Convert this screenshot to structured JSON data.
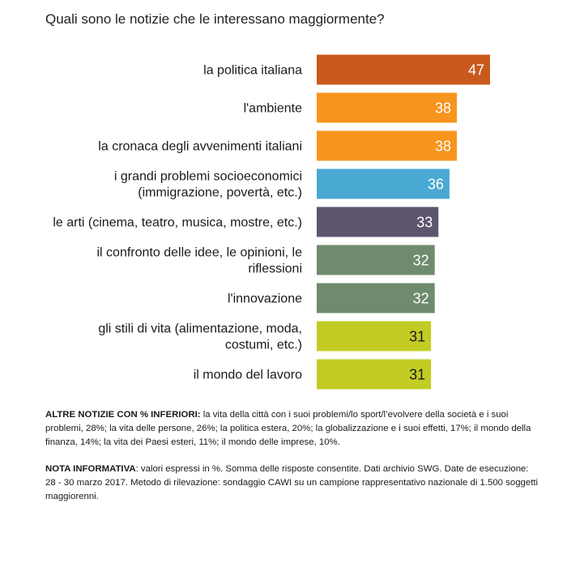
{
  "chart_data": {
    "type": "bar",
    "orientation": "horizontal",
    "title": "Quali sono le notizie che le interessano maggiormente?",
    "xlabel": "",
    "ylabel": "",
    "xlim": [
      0,
      50
    ],
    "grid": false,
    "legend": "none",
    "categories": [
      [
        "la politica italiana"
      ],
      [
        "l'ambiente"
      ],
      [
        "la cronaca degli avvenimenti italiani"
      ],
      [
        "i grandi problemi socioeconomici",
        "(immigrazione, povertà, etc.)"
      ],
      [
        "le arti (cinema, teatro, musica, mostre, etc.)"
      ],
      [
        "il confronto delle idee, le opinioni, le",
        "riflessioni"
      ],
      [
        "l'innovazione"
      ],
      [
        "gli stili di vita (alimentazione, moda,",
        "costumi, etc.)"
      ],
      [
        "il mondo del lavoro"
      ]
    ],
    "values": [
      47,
      38,
      38,
      36,
      33,
      32,
      32,
      31,
      31
    ],
    "colors": [
      "#c85a1e",
      "#f7941d",
      "#f7941d",
      "#4aa9d2",
      "#5d5570",
      "#6f8b6f",
      "#6f8b6f",
      "#c2cc24",
      "#c2cc24"
    ],
    "value_label_colors": [
      "#ffffff",
      "#ffffff",
      "#ffffff",
      "#ffffff",
      "#ffffff",
      "#ffffff",
      "#ffffff",
      "#1a1a1a",
      "#1a1a1a"
    ]
  },
  "notes": {
    "other_title": "ALTRE NOTIZIE CON % INFERIORI:",
    "other_text": " la vita della città con i suoi problemi/lo sport/l’evolvere della società e i suoi problemi, 28%; la vita delle persone, 26%; la politica estera, 20%; la globalizzazione e i suoi effetti, 17%; il mondo della finanza, 14%; la vita dei Paesi esteri, 11%; il mondo delle imprese, 10%.",
    "info_title": "NOTA INFORMATIVA",
    "info_text": ": valori espressi in %. Somma delle risposte consentite. Dati archivio SWG. Date de esecuzione: 28 - 30 marzo 2017. Metodo di rilevazione: sondaggio CAWI su un campione rappresentativo nazionale di 1.500 soggetti maggiorenni."
  }
}
